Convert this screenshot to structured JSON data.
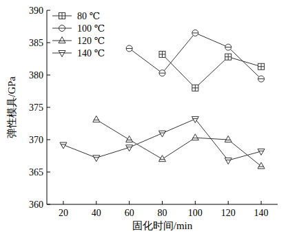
{
  "chart_data": {
    "type": "line",
    "x_label": "固化时间/min",
    "y_label": "弹性模具/GPa",
    "x": [
      20,
      40,
      60,
      80,
      100,
      120,
      140
    ],
    "xlim": [
      10,
      150
    ],
    "xticks": [
      20,
      40,
      60,
      80,
      100,
      120,
      140
    ],
    "ylim": [
      360,
      390
    ],
    "yticks": [
      360,
      365,
      370,
      375,
      380,
      385,
      390
    ],
    "legend": "upper-left",
    "grid": false,
    "series": [
      {
        "name": "80 ℃",
        "color": "#333333",
        "marker": "square",
        "values": [
          null,
          null,
          null,
          383.2,
          378.0,
          382.8,
          381.3
        ]
      },
      {
        "name": "100 ℃",
        "color": "#333333",
        "marker": "circle",
        "values": [
          null,
          null,
          384.1,
          380.3,
          386.5,
          384.3,
          379.4
        ]
      },
      {
        "name": "120 ℃",
        "color": "#333333",
        "marker": "triangle-up",
        "values": [
          null,
          373.1,
          370.0,
          367.0,
          370.3,
          370.0,
          365.9
        ]
      },
      {
        "name": "140 ℃",
        "color": "#333333",
        "marker": "triangle-down",
        "values": [
          369.2,
          367.2,
          368.8,
          371.0,
          373.2,
          366.8,
          368.2
        ]
      }
    ]
  }
}
